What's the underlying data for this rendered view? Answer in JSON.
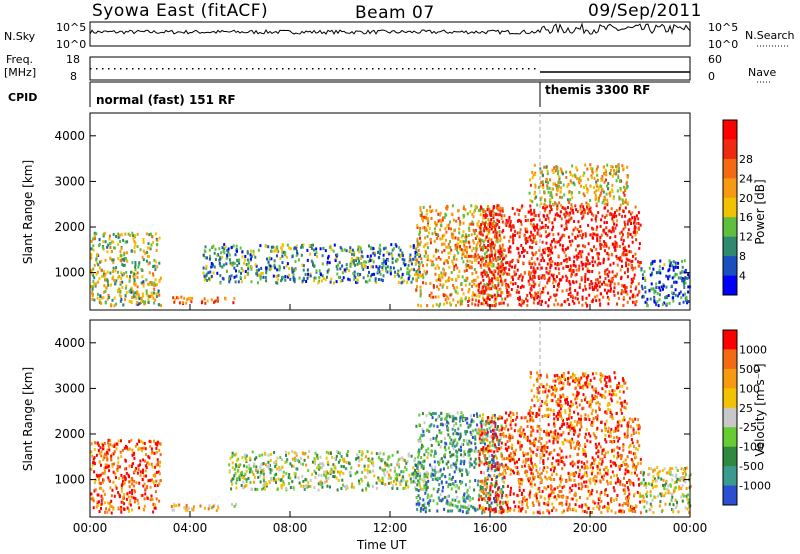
{
  "header": {
    "station": "Syowa East (fitACF)",
    "beam": "Beam 07",
    "date": "09/Sep/2011"
  },
  "params": {
    "nsky_label": "N.Sky",
    "nsearch_label": "N.Search",
    "freq_label_1": "Freq.",
    "freq_label_2": "[MHz]",
    "nave_label": "Nave",
    "cpid_label": "CPID",
    "left_ticks_top": [
      "10^5",
      "10^0"
    ],
    "right_ticks_top": [
      "10^5",
      "10^0"
    ],
    "left_ticks_freq": [
      "18",
      "8"
    ],
    "right_ticks_nave": [
      "60",
      "0"
    ]
  },
  "cpid": [
    {
      "name": "normal (fast) 151 RF",
      "start_hour": 0
    },
    {
      "name": "themis 3300 RF",
      "start_hour": 18
    }
  ],
  "chart_data": [
    {
      "type": "heatmap",
      "name": "Power",
      "ylabel": "Slant Range [km]",
      "xlabel": "Time UT",
      "xlim": [
        0,
        24
      ],
      "ylim": [
        180,
        4500
      ],
      "x_ticks": [
        "00:00",
        "04:00",
        "08:00",
        "12:00",
        "16:00",
        "20:00",
        "00:00"
      ],
      "y_ticks": [
        1000,
        2000,
        3000,
        4000
      ],
      "colorbar_label": "Power [dB]",
      "colorbar_ticks": [
        4,
        8,
        12,
        16,
        20,
        24,
        28
      ],
      "colorbar_colors": [
        "#0000ff",
        "#1a4fc0",
        "#2e8a6e",
        "#5fbf3f",
        "#f2c200",
        "#f79a10",
        "#f46a10",
        "#ee2a10",
        "#ff0000"
      ],
      "echo_regions": [
        {
          "t": [
            0.0,
            2.8
          ],
          "r": [
            300,
            1900
          ],
          "level": 0.45
        },
        {
          "t": [
            3.2,
            5.8
          ],
          "r": [
            350,
            500
          ],
          "level": 0.75
        },
        {
          "t": [
            4.5,
            13.2
          ],
          "r": [
            800,
            1650
          ],
          "level": 0.3
        },
        {
          "t": [
            13.0,
            16.5
          ],
          "r": [
            300,
            2500
          ],
          "level": 0.6
        },
        {
          "t": [
            15.5,
            22.0
          ],
          "r": [
            300,
            2500
          ],
          "level": 0.9
        },
        {
          "t": [
            17.5,
            21.5
          ],
          "r": [
            2500,
            3400
          ],
          "level": 0.55
        },
        {
          "t": [
            22.0,
            24.0
          ],
          "r": [
            300,
            1300
          ],
          "level": 0.2
        }
      ]
    },
    {
      "type": "heatmap",
      "name": "Velocity",
      "ylabel": "Slant Range [km]",
      "xlabel": "Time UT",
      "xlim": [
        0,
        24
      ],
      "ylim": [
        180,
        4500
      ],
      "x_ticks": [
        "00:00",
        "04:00",
        "08:00",
        "12:00",
        "16:00",
        "20:00",
        "00:00"
      ],
      "y_ticks": [
        1000,
        2000,
        3000,
        4000
      ],
      "colorbar_label": "Velocity [m s⁻¹]",
      "colorbar_ticks": [
        1000,
        500,
        100,
        25,
        -25,
        -100,
        -500,
        -1000
      ],
      "colorbar_colors": [
        "#2a4fd0",
        "#3a9a8e",
        "#2e8a3e",
        "#66cc33",
        "#c8c8c8",
        "#f2c200",
        "#f79a10",
        "#f46a10",
        "#ff0000"
      ],
      "echo_regions": [
        {
          "t": [
            0.0,
            2.8
          ],
          "r": [
            300,
            1900
          ],
          "level": 0.85
        },
        {
          "t": [
            3.2,
            5.8
          ],
          "r": [
            350,
            500
          ],
          "level": 0.62
        },
        {
          "t": [
            5.5,
            13.5
          ],
          "r": [
            800,
            1650
          ],
          "level": 0.45
        },
        {
          "t": [
            13.0,
            16.5
          ],
          "r": [
            300,
            2500
          ],
          "level": 0.25
        },
        {
          "t": [
            15.5,
            22.0
          ],
          "r": [
            300,
            2500
          ],
          "level": 0.85
        },
        {
          "t": [
            17.5,
            21.5
          ],
          "r": [
            2500,
            3400
          ],
          "level": 0.8
        },
        {
          "t": [
            22.0,
            24.0
          ],
          "r": [
            300,
            1300
          ],
          "level": 0.5
        }
      ]
    }
  ]
}
